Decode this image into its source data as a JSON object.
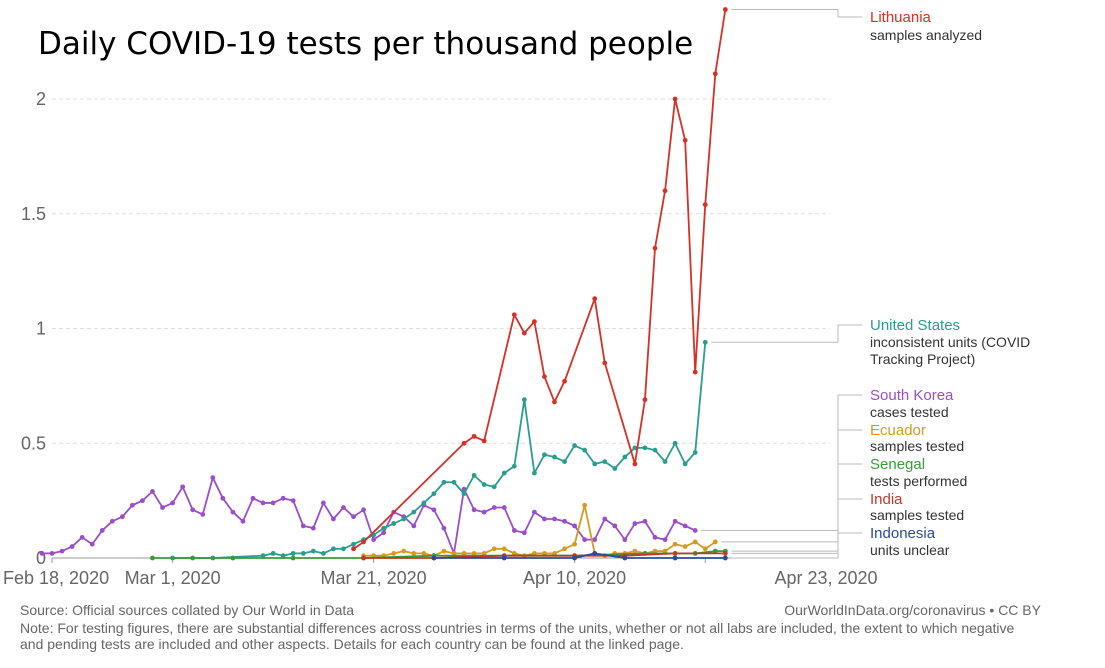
{
  "chart_data": {
    "type": "line",
    "title": "Daily COVID-19 tests per thousand people",
    "xlabel": "",
    "ylabel": "",
    "x_ticks": [
      "Feb 18, 2020",
      "Mar 1, 2020",
      "Mar 21, 2020",
      "Apr 10, 2020",
      "Apr 23, 2020"
    ],
    "y_ticks": [
      "0",
      "0.5",
      "1",
      "1.5",
      "2"
    ],
    "ylim": [
      0,
      2.4
    ],
    "grid": "horizontal dashed",
    "legend": "right, labels at line ends",
    "series": [
      {
        "name": "Lithuania",
        "unit_note": "samples analyzed",
        "color": "#d73027",
        "points": [
          [
            "2020-03-19",
            0.04
          ],
          [
            "2020-03-20",
            0.07
          ],
          [
            "2020-03-30",
            0.5
          ],
          [
            "2020-03-31",
            0.53
          ],
          [
            "2020-04-01",
            0.51
          ],
          [
            "2020-04-04",
            1.06
          ],
          [
            "2020-04-05",
            0.98
          ],
          [
            "2020-04-06",
            1.03
          ],
          [
            "2020-04-07",
            0.79
          ],
          [
            "2020-04-08",
            0.68
          ],
          [
            "2020-04-09",
            0.77
          ],
          [
            "2020-04-12",
            1.13
          ],
          [
            "2020-04-13",
            0.85
          ],
          [
            "2020-04-16",
            0.41
          ],
          [
            "2020-04-17",
            0.69
          ],
          [
            "2020-04-18",
            1.35
          ],
          [
            "2020-04-19",
            1.6
          ],
          [
            "2020-04-20",
            2.0
          ],
          [
            "2020-04-21",
            1.82
          ],
          [
            "2020-04-22",
            0.81
          ],
          [
            "2020-04-23",
            1.54
          ],
          [
            "2020-04-24",
            2.11
          ],
          [
            "2020-04-25",
            2.39
          ]
        ]
      },
      {
        "name": "United States",
        "unit_note": "inconsistent units (COVID Tracking Project)",
        "color": "#2a9d8f",
        "points": [
          [
            "2020-03-01",
            0.0
          ],
          [
            "2020-03-05",
            0.0
          ],
          [
            "2020-03-10",
            0.01
          ],
          [
            "2020-03-11",
            0.02
          ],
          [
            "2020-03-12",
            0.01
          ],
          [
            "2020-03-13",
            0.02
          ],
          [
            "2020-03-14",
            0.02
          ],
          [
            "2020-03-15",
            0.03
          ],
          [
            "2020-03-16",
            0.02
          ],
          [
            "2020-03-17",
            0.04
          ],
          [
            "2020-03-18",
            0.04
          ],
          [
            "2020-03-19",
            0.06
          ],
          [
            "2020-03-20",
            0.08
          ],
          [
            "2020-03-21",
            0.1
          ],
          [
            "2020-03-22",
            0.13
          ],
          [
            "2020-03-23",
            0.15
          ],
          [
            "2020-03-24",
            0.17
          ],
          [
            "2020-03-25",
            0.2
          ],
          [
            "2020-03-26",
            0.24
          ],
          [
            "2020-03-27",
            0.28
          ],
          [
            "2020-03-28",
            0.33
          ],
          [
            "2020-03-29",
            0.33
          ],
          [
            "2020-03-30",
            0.28
          ],
          [
            "2020-03-31",
            0.36
          ],
          [
            "2020-04-01",
            0.32
          ],
          [
            "2020-04-02",
            0.31
          ],
          [
            "2020-04-03",
            0.37
          ],
          [
            "2020-04-04",
            0.4
          ],
          [
            "2020-04-05",
            0.69
          ],
          [
            "2020-04-06",
            0.37
          ],
          [
            "2020-04-07",
            0.45
          ],
          [
            "2020-04-08",
            0.44
          ],
          [
            "2020-04-09",
            0.42
          ],
          [
            "2020-04-10",
            0.49
          ],
          [
            "2020-04-11",
            0.47
          ],
          [
            "2020-04-12",
            0.41
          ],
          [
            "2020-04-13",
            0.42
          ],
          [
            "2020-04-14",
            0.39
          ],
          [
            "2020-04-15",
            0.44
          ],
          [
            "2020-04-16",
            0.48
          ],
          [
            "2020-04-17",
            0.48
          ],
          [
            "2020-04-18",
            0.47
          ],
          [
            "2020-04-19",
            0.42
          ],
          [
            "2020-04-20",
            0.5
          ],
          [
            "2020-04-21",
            0.41
          ],
          [
            "2020-04-22",
            0.46
          ],
          [
            "2020-04-23",
            0.94
          ]
        ]
      },
      {
        "name": "South Korea",
        "unit_note": "cases tested",
        "color": "#9b4dca",
        "points": [
          [
            "2020-02-17",
            0.02
          ],
          [
            "2020-02-18",
            0.02
          ],
          [
            "2020-02-19",
            0.03
          ],
          [
            "2020-02-20",
            0.05
          ],
          [
            "2020-02-21",
            0.09
          ],
          [
            "2020-02-22",
            0.06
          ],
          [
            "2020-02-23",
            0.12
          ],
          [
            "2020-02-24",
            0.16
          ],
          [
            "2020-02-25",
            0.18
          ],
          [
            "2020-02-26",
            0.23
          ],
          [
            "2020-02-27",
            0.25
          ],
          [
            "2020-02-28",
            0.29
          ],
          [
            "2020-02-29",
            0.22
          ],
          [
            "2020-03-01",
            0.24
          ],
          [
            "2020-03-02",
            0.31
          ],
          [
            "2020-03-03",
            0.21
          ],
          [
            "2020-03-04",
            0.19
          ],
          [
            "2020-03-05",
            0.35
          ],
          [
            "2020-03-06",
            0.26
          ],
          [
            "2020-03-07",
            0.2
          ],
          [
            "2020-03-08",
            0.16
          ],
          [
            "2020-03-09",
            0.26
          ],
          [
            "2020-03-10",
            0.24
          ],
          [
            "2020-03-11",
            0.24
          ],
          [
            "2020-03-12",
            0.26
          ],
          [
            "2020-03-13",
            0.25
          ],
          [
            "2020-03-14",
            0.14
          ],
          [
            "2020-03-15",
            0.13
          ],
          [
            "2020-03-16",
            0.24
          ],
          [
            "2020-03-17",
            0.17
          ],
          [
            "2020-03-18",
            0.22
          ],
          [
            "2020-03-19",
            0.18
          ],
          [
            "2020-03-20",
            0.21
          ],
          [
            "2020-03-21",
            0.08
          ],
          [
            "2020-03-22",
            0.11
          ],
          [
            "2020-03-23",
            0.2
          ],
          [
            "2020-03-24",
            0.18
          ],
          [
            "2020-03-25",
            0.14
          ],
          [
            "2020-03-26",
            0.23
          ],
          [
            "2020-03-27",
            0.21
          ],
          [
            "2020-03-28",
            0.13
          ],
          [
            "2020-03-29",
            0.02
          ],
          [
            "2020-03-30",
            0.3
          ],
          [
            "2020-03-31",
            0.21
          ],
          [
            "2020-04-01",
            0.2
          ],
          [
            "2020-04-02",
            0.22
          ],
          [
            "2020-04-03",
            0.22
          ],
          [
            "2020-04-04",
            0.12
          ],
          [
            "2020-04-05",
            0.11
          ],
          [
            "2020-04-06",
            0.2
          ],
          [
            "2020-04-07",
            0.17
          ],
          [
            "2020-04-08",
            0.17
          ],
          [
            "2020-04-09",
            0.16
          ],
          [
            "2020-04-10",
            0.14
          ],
          [
            "2020-04-11",
            0.08
          ],
          [
            "2020-04-12",
            0.08
          ],
          [
            "2020-04-13",
            0.17
          ],
          [
            "2020-04-14",
            0.14
          ],
          [
            "2020-04-15",
            0.08
          ],
          [
            "2020-04-16",
            0.15
          ],
          [
            "2020-04-17",
            0.16
          ],
          [
            "2020-04-18",
            0.09
          ],
          [
            "2020-04-19",
            0.08
          ],
          [
            "2020-04-20",
            0.16
          ],
          [
            "2020-04-21",
            0.14
          ],
          [
            "2020-04-22",
            0.12
          ]
        ]
      },
      {
        "name": "Ecuador",
        "unit_note": "samples tested",
        "color": "#d69a1f",
        "points": [
          [
            "2020-03-20",
            0.01
          ],
          [
            "2020-03-21",
            0.01
          ],
          [
            "2020-03-22",
            0.01
          ],
          [
            "2020-03-23",
            0.02
          ],
          [
            "2020-03-24",
            0.03
          ],
          [
            "2020-03-25",
            0.02
          ],
          [
            "2020-03-26",
            0.02
          ],
          [
            "2020-03-27",
            0.01
          ],
          [
            "2020-03-28",
            0.03
          ],
          [
            "2020-03-29",
            0.02
          ],
          [
            "2020-03-30",
            0.02
          ],
          [
            "2020-03-31",
            0.02
          ],
          [
            "2020-04-01",
            0.02
          ],
          [
            "2020-04-02",
            0.04
          ],
          [
            "2020-04-03",
            0.04
          ],
          [
            "2020-04-04",
            0.02
          ],
          [
            "2020-04-05",
            0.01
          ],
          [
            "2020-04-06",
            0.02
          ],
          [
            "2020-04-07",
            0.02
          ],
          [
            "2020-04-08",
            0.02
          ],
          [
            "2020-04-09",
            0.04
          ],
          [
            "2020-04-10",
            0.06
          ],
          [
            "2020-04-11",
            0.23
          ],
          [
            "2020-04-12",
            0.02
          ],
          [
            "2020-04-13",
            0.01
          ],
          [
            "2020-04-14",
            0.02
          ],
          [
            "2020-04-15",
            0.02
          ],
          [
            "2020-04-16",
            0.03
          ],
          [
            "2020-04-17",
            0.02
          ],
          [
            "2020-04-18",
            0.03
          ],
          [
            "2020-04-19",
            0.03
          ],
          [
            "2020-04-20",
            0.06
          ],
          [
            "2020-04-21",
            0.05
          ],
          [
            "2020-04-22",
            0.07
          ],
          [
            "2020-04-23",
            0.04
          ],
          [
            "2020-04-24",
            0.07
          ]
        ]
      },
      {
        "name": "Senegal",
        "unit_note": "tests performed",
        "color": "#3a9a3a",
        "points": [
          [
            "2020-02-28",
            0.0
          ],
          [
            "2020-03-03",
            0.0
          ],
          [
            "2020-03-07",
            0.0
          ],
          [
            "2020-03-13",
            0.0
          ],
          [
            "2020-03-20",
            0.0
          ],
          [
            "2020-03-27",
            0.01
          ],
          [
            "2020-04-03",
            0.01
          ],
          [
            "2020-04-10",
            0.01
          ],
          [
            "2020-04-17",
            0.02
          ],
          [
            "2020-04-22",
            0.02
          ],
          [
            "2020-04-24",
            0.03
          ],
          [
            "2020-04-25",
            0.03
          ]
        ]
      },
      {
        "name": "India",
        "unit_note": "samples tested",
        "color": "#c0392b",
        "points": [
          [
            "2020-03-20",
            0.0
          ],
          [
            "2020-03-27",
            0.0
          ],
          [
            "2020-04-03",
            0.01
          ],
          [
            "2020-04-10",
            0.01
          ],
          [
            "2020-04-15",
            0.01
          ],
          [
            "2020-04-20",
            0.02
          ],
          [
            "2020-04-25",
            0.02
          ]
        ]
      },
      {
        "name": "Indonesia",
        "unit_note": "units unclear",
        "color": "#2c4a9a",
        "points": [
          [
            "2020-03-27",
            0.0
          ],
          [
            "2020-04-03",
            0.0
          ],
          [
            "2020-04-10",
            0.0
          ],
          [
            "2020-04-12",
            0.02
          ],
          [
            "2020-04-15",
            0.0
          ],
          [
            "2020-04-20",
            0.0
          ],
          [
            "2020-04-25",
            0.0
          ]
        ]
      }
    ]
  },
  "footer": {
    "source": "Source: Official sources collated by Our World in Data",
    "url": "OurWorldInData.org/coronavirus • CC BY",
    "note": "Note: For testing figures, there are substantial differences across countries in terms of the units, whether or not all labs are included, the extent to which negative and pending tests are included and other aspects. Details for each country can be found at the linked page."
  }
}
